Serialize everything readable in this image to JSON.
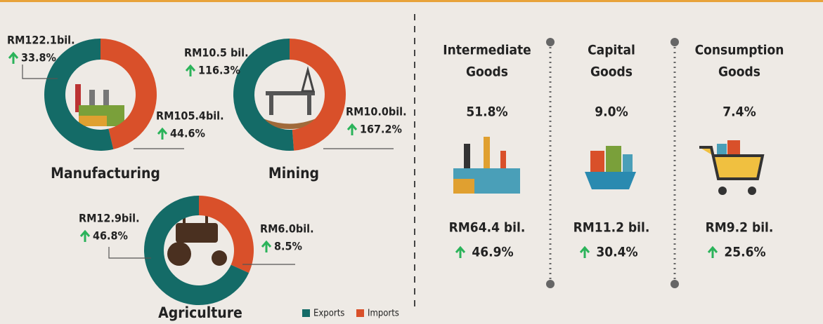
{
  "chart_data": [
    {
      "type": "pie",
      "title": "Manufacturing",
      "categories": [
        "Exports",
        "Imports"
      ],
      "values": [
        122.1,
        105.4
      ],
      "value_labels": [
        "RM122.1bil.",
        "RM105.4bil."
      ],
      "growth": [
        "33.8%",
        "44.6%"
      ],
      "colors": [
        "#146b67",
        "#d9502a"
      ]
    },
    {
      "type": "pie",
      "title": "Mining",
      "categories": [
        "Exports",
        "Imports"
      ],
      "values": [
        10.5,
        10.0
      ],
      "value_labels": [
        "RM10.5 bil.",
        "RM10.0bil."
      ],
      "growth": [
        "116.3%",
        "167.2%"
      ],
      "colors": [
        "#146b67",
        "#d9502a"
      ]
    },
    {
      "type": "pie",
      "title": "Agriculture",
      "categories": [
        "Exports",
        "Imports"
      ],
      "values": [
        12.9,
        6.0
      ],
      "value_labels": [
        "RM12.9bil.",
        "RM6.0bil."
      ],
      "growth": [
        "46.8%",
        "8.5%"
      ],
      "colors": [
        "#146b67",
        "#d9502a"
      ]
    }
  ],
  "goods": [
    {
      "title_lines": [
        "Intermediate",
        "Goods"
      ],
      "share": "51.8%",
      "value": "RM64.4 bil.",
      "growth": "46.9%"
    },
    {
      "title_lines": [
        "Capital",
        "Goods"
      ],
      "share": "9.0%",
      "value": "RM11.2 bil.",
      "growth": "30.4%"
    },
    {
      "title_lines": [
        "Consumption",
        "Goods"
      ],
      "share": "7.4%",
      "value": "RM9.2 bil.",
      "growth": "25.6%"
    }
  ]
}
